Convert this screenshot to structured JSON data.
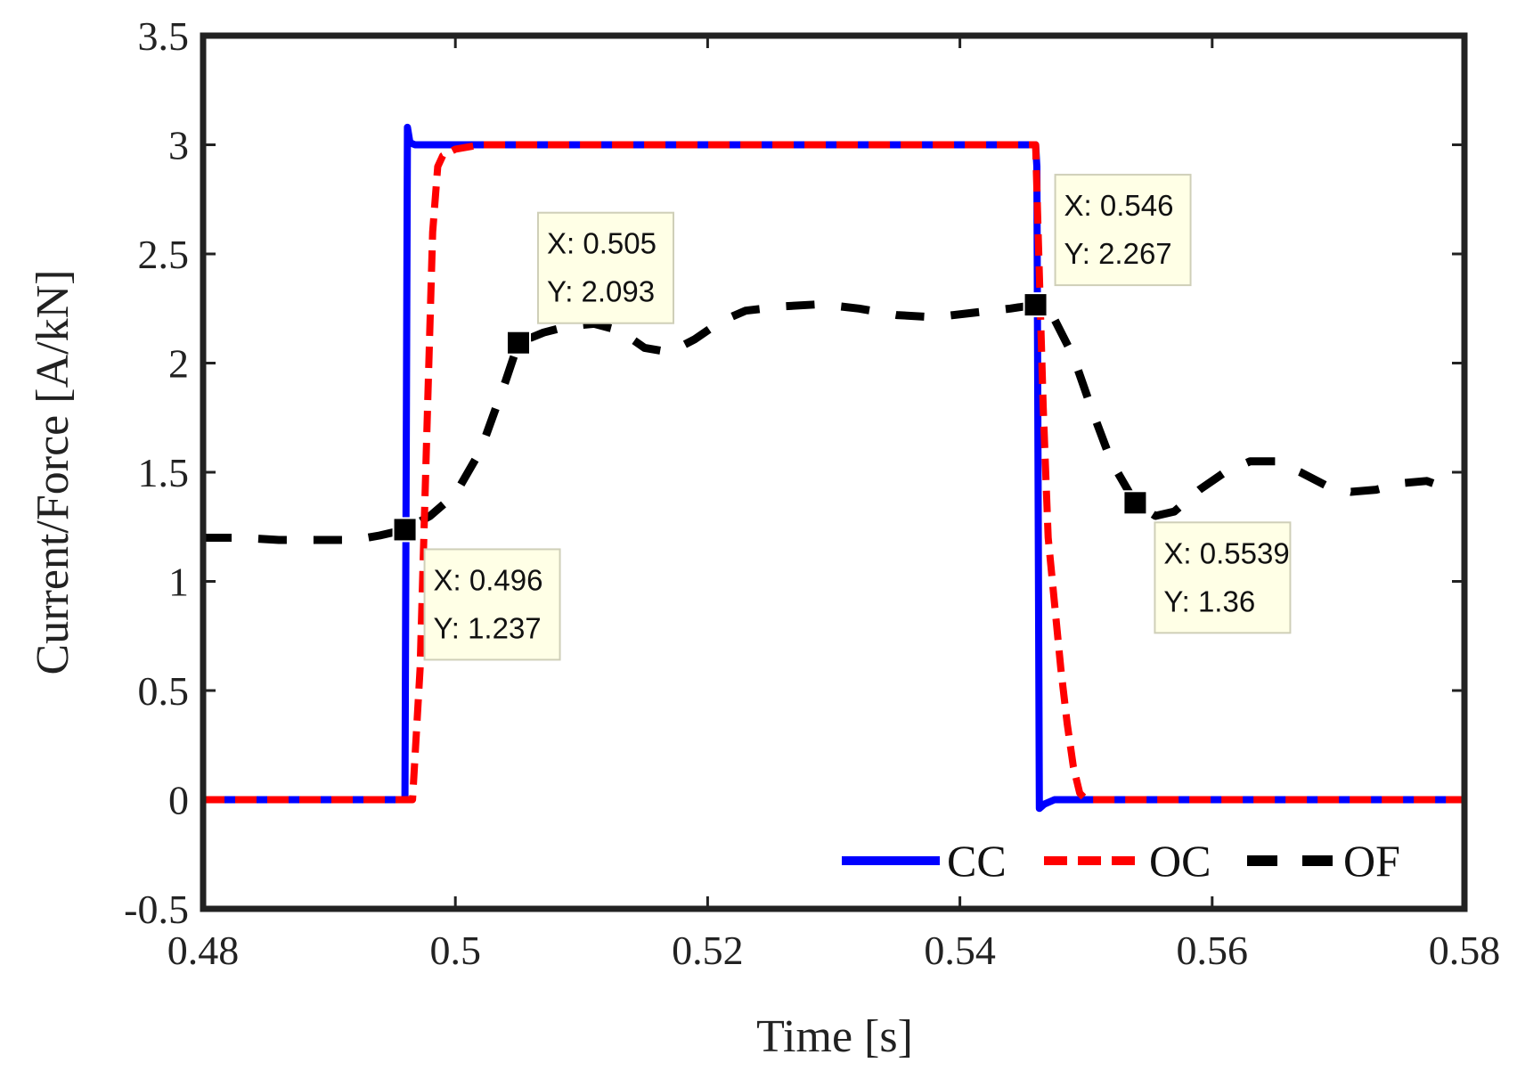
{
  "chart_data": {
    "type": "line",
    "xlabel": "Time [s]",
    "ylabel": "Current/Force [A/kN]",
    "xlim": [
      0.48,
      0.58
    ],
    "ylim": [
      -0.5,
      3.5
    ],
    "xticks": [
      0.48,
      0.5,
      0.52,
      0.54,
      0.56,
      0.58
    ],
    "xtick_labels": [
      "0.48",
      "0.5",
      "0.52",
      "0.54",
      "0.56",
      "0.58"
    ],
    "yticks": [
      -0.5,
      0,
      0.5,
      1,
      1.5,
      2,
      2.5,
      3,
      3.5
    ],
    "ytick_labels": [
      "-0.5",
      "0",
      "0.5",
      "1",
      "1.5",
      "2",
      "2.5",
      "3",
      "3.5"
    ],
    "grid": false,
    "legend_position": "bottom-right",
    "series": [
      {
        "name": "CC",
        "color": "#0000ff",
        "style": "solid",
        "x": [
          0.48,
          0.496,
          0.4962,
          0.4964,
          0.4968,
          0.498,
          0.546,
          0.5461,
          0.5463,
          0.5467,
          0.5475,
          0.58
        ],
        "y": [
          0,
          0,
          3.08,
          3.01,
          3.0,
          3.0,
          3.0,
          2.9,
          -0.04,
          -0.02,
          0,
          0
        ]
      },
      {
        "name": "OC",
        "color": "#ff0000",
        "style": "dashed",
        "x": [
          0.48,
          0.4966,
          0.4972,
          0.4978,
          0.4982,
          0.4986,
          0.499,
          0.5,
          0.502,
          0.51,
          0.546,
          0.5462,
          0.5466,
          0.547,
          0.5475,
          0.548,
          0.5485,
          0.549,
          0.5495,
          0.55,
          0.58
        ],
        "y": [
          0,
          0,
          0.6,
          1.8,
          2.6,
          2.9,
          2.95,
          2.98,
          3.0,
          3.0,
          3.0,
          2.6,
          1.8,
          1.2,
          0.9,
          0.6,
          0.35,
          0.15,
          0.03,
          0,
          0
        ]
      },
      {
        "name": "OF",
        "color": "#000000",
        "style": "dashed",
        "x": [
          0.48,
          0.483,
          0.486,
          0.489,
          0.492,
          0.494,
          0.496,
          0.498,
          0.5,
          0.502,
          0.504,
          0.505,
          0.507,
          0.509,
          0.511,
          0.513,
          0.515,
          0.517,
          0.519,
          0.521,
          0.523,
          0.526,
          0.529,
          0.532,
          0.535,
          0.538,
          0.541,
          0.544,
          0.546,
          0.5475,
          0.549,
          0.5505,
          0.552,
          0.5539,
          0.5555,
          0.557,
          0.559,
          0.561,
          0.563,
          0.565,
          0.567,
          0.569,
          0.571,
          0.573,
          0.575,
          0.577,
          0.578
        ],
        "y": [
          1.2,
          1.2,
          1.19,
          1.19,
          1.19,
          1.21,
          1.237,
          1.3,
          1.4,
          1.6,
          1.92,
          2.093,
          2.14,
          2.17,
          2.18,
          2.15,
          2.07,
          2.05,
          2.11,
          2.19,
          2.24,
          2.26,
          2.27,
          2.25,
          2.22,
          2.21,
          2.23,
          2.25,
          2.267,
          2.2,
          2.03,
          1.78,
          1.55,
          1.36,
          1.3,
          1.32,
          1.42,
          1.5,
          1.55,
          1.55,
          1.5,
          1.44,
          1.41,
          1.42,
          1.45,
          1.46,
          1.44
        ]
      }
    ],
    "annotations": [
      {
        "series": "OF",
        "x": 0.496,
        "y": 1.237,
        "line1": "X: 0.496",
        "line2": "Y: 1.237",
        "placement": "below-right"
      },
      {
        "series": "OF",
        "x": 0.505,
        "y": 2.093,
        "line1": "X: 0.505",
        "line2": "Y: 2.093",
        "placement": "above-right"
      },
      {
        "series": "OF",
        "x": 0.546,
        "y": 2.267,
        "line1": "X: 0.546",
        "line2": "Y: 2.267",
        "placement": "above-right"
      },
      {
        "series": "OF",
        "x": 0.5539,
        "y": 1.36,
        "line1": "X: 0.5539",
        "line2": "Y: 1.36",
        "placement": "below-right"
      }
    ]
  }
}
